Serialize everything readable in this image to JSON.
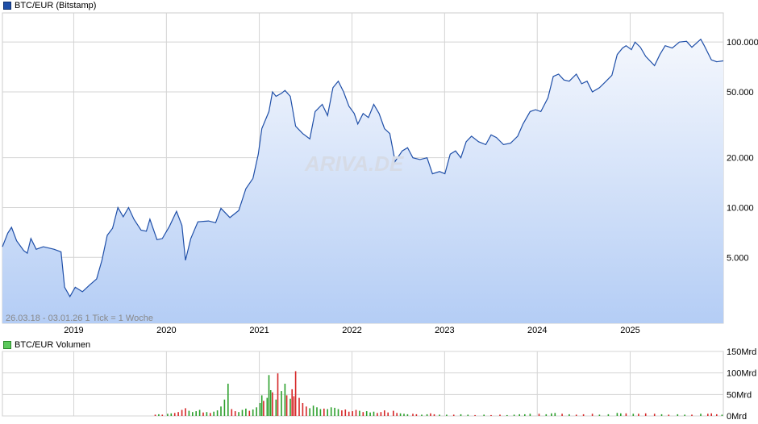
{
  "chart_data": [
    {
      "type": "area",
      "legend": "BTC/EUR (Bitstamp)",
      "series_color": "#1f4fa8",
      "y_scale": "log",
      "ylim": [
        2000,
        150000
      ],
      "y_ticks": [
        5000,
        10000,
        20000,
        50000,
        100000
      ],
      "y_tick_labels": [
        "5.000",
        "10.000",
        "20.000",
        "50.000",
        "100.000"
      ],
      "x_range": [
        "2018-03-26",
        "2026-01-03"
      ],
      "x_ticks": [
        "2019-01-01",
        "2020-01-01",
        "2021-01-01",
        "2022-01-01",
        "2023-01-01",
        "2024-01-01",
        "2025-01-01"
      ],
      "x_tick_labels": [
        "2019",
        "2020",
        "2021",
        "2022",
        "2023",
        "2024",
        "2025"
      ],
      "note": "26.03.18 - 03.01.26   1 Tick = 1 Woche",
      "watermark": "ARIVA.DE",
      "grid": true,
      "points": [
        [
          "2018-03-26",
          5800
        ],
        [
          "2018-04-16",
          7000
        ],
        [
          "2018-05-01",
          7600
        ],
        [
          "2018-05-21",
          6300
        ],
        [
          "2018-06-18",
          5500
        ],
        [
          "2018-07-02",
          5300
        ],
        [
          "2018-07-16",
          6500
        ],
        [
          "2018-08-06",
          5600
        ],
        [
          "2018-09-03",
          5800
        ],
        [
          "2018-10-15",
          5600
        ],
        [
          "2018-11-12",
          5400
        ],
        [
          "2018-11-26",
          3300
        ],
        [
          "2018-12-17",
          2900
        ],
        [
          "2019-01-07",
          3300
        ],
        [
          "2019-02-04",
          3100
        ],
        [
          "2019-03-04",
          3400
        ],
        [
          "2019-04-01",
          3700
        ],
        [
          "2019-04-22",
          4800
        ],
        [
          "2019-05-13",
          6800
        ],
        [
          "2019-06-03",
          7500
        ],
        [
          "2019-06-24",
          10000
        ],
        [
          "2019-07-15",
          8800
        ],
        [
          "2019-08-05",
          10000
        ],
        [
          "2019-08-26",
          8500
        ],
        [
          "2019-09-23",
          7300
        ],
        [
          "2019-10-14",
          7200
        ],
        [
          "2019-10-28",
          8500
        ],
        [
          "2019-11-25",
          6400
        ],
        [
          "2019-12-16",
          6500
        ],
        [
          "2020-01-13",
          7700
        ],
        [
          "2020-02-10",
          9500
        ],
        [
          "2020-03-02",
          7800
        ],
        [
          "2020-03-16",
          4800
        ],
        [
          "2020-04-06",
          6500
        ],
        [
          "2020-05-04",
          8200
        ],
        [
          "2020-06-15",
          8300
        ],
        [
          "2020-07-13",
          8100
        ],
        [
          "2020-08-03",
          9900
        ],
        [
          "2020-09-07",
          8700
        ],
        [
          "2020-10-12",
          9600
        ],
        [
          "2020-11-09",
          13000
        ],
        [
          "2020-12-07",
          15000
        ],
        [
          "2020-12-28",
          21000
        ],
        [
          "2021-01-11",
          30000
        ],
        [
          "2021-02-08",
          38000
        ],
        [
          "2021-02-22",
          50000
        ],
        [
          "2021-03-08",
          47000
        ],
        [
          "2021-03-29",
          49000
        ],
        [
          "2021-04-12",
          51000
        ],
        [
          "2021-05-03",
          47000
        ],
        [
          "2021-05-24",
          31000
        ],
        [
          "2021-06-21",
          28000
        ],
        [
          "2021-07-19",
          26000
        ],
        [
          "2021-08-09",
          38000
        ],
        [
          "2021-09-06",
          42000
        ],
        [
          "2021-09-27",
          36000
        ],
        [
          "2021-10-18",
          53000
        ],
        [
          "2021-11-08",
          58000
        ],
        [
          "2021-11-29",
          50000
        ],
        [
          "2021-12-20",
          41000
        ],
        [
          "2022-01-10",
          37000
        ],
        [
          "2022-01-24",
          32000
        ],
        [
          "2022-02-14",
          37000
        ],
        [
          "2022-03-07",
          35000
        ],
        [
          "2022-03-28",
          42000
        ],
        [
          "2022-04-18",
          37000
        ],
        [
          "2022-05-09",
          30000
        ],
        [
          "2022-05-30",
          28000
        ],
        [
          "2022-06-20",
          19000
        ],
        [
          "2022-07-18",
          22000
        ],
        [
          "2022-08-08",
          23000
        ],
        [
          "2022-08-29",
          20000
        ],
        [
          "2022-09-26",
          19500
        ],
        [
          "2022-10-24",
          20000
        ],
        [
          "2022-11-14",
          16000
        ],
        [
          "2022-12-12",
          16500
        ],
        [
          "2023-01-02",
          16000
        ],
        [
          "2023-01-23",
          21000
        ],
        [
          "2023-02-13",
          22000
        ],
        [
          "2023-03-06",
          20000
        ],
        [
          "2023-03-27",
          25000
        ],
        [
          "2023-04-17",
          27000
        ],
        [
          "2023-05-15",
          25000
        ],
        [
          "2023-06-12",
          24000
        ],
        [
          "2023-07-03",
          27500
        ],
        [
          "2023-07-24",
          26500
        ],
        [
          "2023-08-21",
          24000
        ],
        [
          "2023-09-18",
          24500
        ],
        [
          "2023-10-16",
          27000
        ],
        [
          "2023-11-06",
          32000
        ],
        [
          "2023-12-04",
          38000
        ],
        [
          "2023-12-25",
          39000
        ],
        [
          "2024-01-15",
          38000
        ],
        [
          "2024-02-12",
          46000
        ],
        [
          "2024-03-04",
          62000
        ],
        [
          "2024-03-25",
          64000
        ],
        [
          "2024-04-15",
          59000
        ],
        [
          "2024-05-06",
          58000
        ],
        [
          "2024-06-03",
          64000
        ],
        [
          "2024-06-24",
          56000
        ],
        [
          "2024-07-15",
          58000
        ],
        [
          "2024-08-05",
          50000
        ],
        [
          "2024-09-02",
          53000
        ],
        [
          "2024-09-23",
          57000
        ],
        [
          "2024-10-21",
          63000
        ],
        [
          "2024-11-11",
          84000
        ],
        [
          "2024-12-02",
          92000
        ],
        [
          "2024-12-16",
          95000
        ],
        [
          "2025-01-06",
          90000
        ],
        [
          "2025-01-20",
          100000
        ],
        [
          "2025-02-10",
          93000
        ],
        [
          "2025-03-03",
          82000
        ],
        [
          "2025-04-07",
          72000
        ],
        [
          "2025-04-28",
          84000
        ],
        [
          "2025-05-19",
          95000
        ],
        [
          "2025-06-16",
          92000
        ],
        [
          "2025-07-14",
          100000
        ],
        [
          "2025-08-11",
          101000
        ],
        [
          "2025-09-01",
          93000
        ],
        [
          "2025-10-06",
          104000
        ],
        [
          "2025-10-20",
          95000
        ],
        [
          "2025-11-17",
          78000
        ],
        [
          "2025-12-08",
          76000
        ],
        [
          "2026-01-03",
          77000
        ]
      ]
    },
    {
      "type": "bar",
      "legend": "BTC/EUR Volumen",
      "up_color": "#2ca02c",
      "down_color": "#d62728",
      "ylim": [
        0,
        150
      ],
      "y_ticks": [
        0,
        50,
        100,
        150
      ],
      "y_tick_labels": [
        "0Mrd",
        "50Mrd",
        "100Mrd",
        "150Mrd"
      ],
      "x_range": [
        "2018-03-26",
        "2026-01-03"
      ],
      "bars": [
        [
          "2019-11-18",
          3,
          "d"
        ],
        [
          "2019-12-02",
          4,
          "u"
        ],
        [
          "2019-12-16",
          3,
          "d"
        ],
        [
          "2020-01-06",
          5,
          "u"
        ],
        [
          "2020-01-20",
          6,
          "u"
        ],
        [
          "2020-02-03",
          7,
          "d"
        ],
        [
          "2020-02-17",
          9,
          "d"
        ],
        [
          "2020-03-02",
          14,
          "d"
        ],
        [
          "2020-03-16",
          18,
          "d"
        ],
        [
          "2020-03-30",
          12,
          "u"
        ],
        [
          "2020-04-13",
          9,
          "u"
        ],
        [
          "2020-04-27",
          11,
          "u"
        ],
        [
          "2020-05-11",
          14,
          "u"
        ],
        [
          "2020-05-25",
          8,
          "d"
        ],
        [
          "2020-06-08",
          9,
          "u"
        ],
        [
          "2020-06-22",
          7,
          "d"
        ],
        [
          "2020-07-06",
          10,
          "u"
        ],
        [
          "2020-07-20",
          13,
          "u"
        ],
        [
          "2020-08-03",
          22,
          "u"
        ],
        [
          "2020-08-17",
          38,
          "u"
        ],
        [
          "2020-08-31",
          75,
          "u"
        ],
        [
          "2020-09-14",
          16,
          "d"
        ],
        [
          "2020-09-28",
          11,
          "d"
        ],
        [
          "2020-10-12",
          9,
          "u"
        ],
        [
          "2020-10-26",
          14,
          "u"
        ],
        [
          "2020-11-09",
          17,
          "u"
        ],
        [
          "2020-11-23",
          12,
          "d"
        ],
        [
          "2020-12-07",
          15,
          "u"
        ],
        [
          "2020-12-21",
          20,
          "u"
        ],
        [
          "2021-01-04",
          30,
          "u"
        ],
        [
          "2021-01-11",
          48,
          "u"
        ],
        [
          "2021-01-18",
          35,
          "d"
        ],
        [
          "2021-02-01",
          42,
          "u"
        ],
        [
          "2021-02-08",
          95,
          "u"
        ],
        [
          "2021-02-15",
          60,
          "u"
        ],
        [
          "2021-02-22",
          55,
          "d"
        ],
        [
          "2021-03-08",
          38,
          "u"
        ],
        [
          "2021-03-15",
          99,
          "d"
        ],
        [
          "2021-03-29",
          58,
          "u"
        ],
        [
          "2021-04-12",
          75,
          "u"
        ],
        [
          "2021-04-19",
          48,
          "d"
        ],
        [
          "2021-05-03",
          40,
          "u"
        ],
        [
          "2021-05-10",
          62,
          "d"
        ],
        [
          "2021-05-17",
          46,
          "d"
        ],
        [
          "2021-05-24",
          104,
          "d"
        ],
        [
          "2021-06-07",
          42,
          "d"
        ],
        [
          "2021-06-21",
          30,
          "d"
        ],
        [
          "2021-07-05",
          22,
          "d"
        ],
        [
          "2021-07-19",
          18,
          "u"
        ],
        [
          "2021-08-02",
          24,
          "u"
        ],
        [
          "2021-08-16",
          20,
          "u"
        ],
        [
          "2021-08-30",
          16,
          "u"
        ],
        [
          "2021-09-13",
          17,
          "d"
        ],
        [
          "2021-09-27",
          16,
          "u"
        ],
        [
          "2021-10-11",
          20,
          "u"
        ],
        [
          "2021-10-25",
          19,
          "u"
        ],
        [
          "2021-11-08",
          16,
          "u"
        ],
        [
          "2021-11-22",
          13,
          "d"
        ],
        [
          "2021-12-06",
          15,
          "d"
        ],
        [
          "2021-12-20",
          10,
          "d"
        ],
        [
          "2022-01-03",
          11,
          "d"
        ],
        [
          "2022-01-17",
          14,
          "d"
        ],
        [
          "2022-01-31",
          12,
          "u"
        ],
        [
          "2022-02-14",
          9,
          "d"
        ],
        [
          "2022-02-28",
          11,
          "u"
        ],
        [
          "2022-03-14",
          8,
          "u"
        ],
        [
          "2022-03-28",
          10,
          "u"
        ],
        [
          "2022-04-11",
          7,
          "d"
        ],
        [
          "2022-04-25",
          9,
          "d"
        ],
        [
          "2022-05-09",
          13,
          "d"
        ],
        [
          "2022-05-23",
          8,
          "d"
        ],
        [
          "2022-06-13",
          12,
          "d"
        ],
        [
          "2022-06-27",
          7,
          "d"
        ],
        [
          "2022-07-11",
          6,
          "u"
        ],
        [
          "2022-07-25",
          5,
          "u"
        ],
        [
          "2022-08-08",
          4,
          "u"
        ],
        [
          "2022-08-29",
          5,
          "d"
        ],
        [
          "2022-09-12",
          4,
          "d"
        ],
        [
          "2022-10-03",
          3,
          "u"
        ],
        [
          "2022-10-24",
          4,
          "u"
        ],
        [
          "2022-11-07",
          6,
          "d"
        ],
        [
          "2022-11-21",
          4,
          "d"
        ],
        [
          "2022-12-12",
          3,
          "u"
        ],
        [
          "2023-01-09",
          3,
          "u"
        ],
        [
          "2023-02-06",
          3,
          "d"
        ],
        [
          "2023-03-06",
          4,
          "u"
        ],
        [
          "2023-04-03",
          3,
          "u"
        ],
        [
          "2023-05-01",
          2,
          "d"
        ],
        [
          "2023-06-05",
          3,
          "u"
        ],
        [
          "2023-07-03",
          2,
          "d"
        ],
        [
          "2023-08-07",
          3,
          "d"
        ],
        [
          "2023-09-04",
          2,
          "u"
        ],
        [
          "2023-10-02",
          3,
          "u"
        ],
        [
          "2023-10-23",
          4,
          "u"
        ],
        [
          "2023-11-13",
          4,
          "u"
        ],
        [
          "2023-12-04",
          5,
          "u"
        ],
        [
          "2024-01-08",
          5,
          "d"
        ],
        [
          "2024-02-05",
          4,
          "u"
        ],
        [
          "2024-02-26",
          6,
          "u"
        ],
        [
          "2024-03-11",
          7,
          "u"
        ],
        [
          "2024-04-08",
          5,
          "d"
        ],
        [
          "2024-05-06",
          4,
          "u"
        ],
        [
          "2024-06-03",
          3,
          "d"
        ],
        [
          "2024-07-01",
          4,
          "d"
        ],
        [
          "2024-08-05",
          5,
          "d"
        ],
        [
          "2024-09-02",
          3,
          "u"
        ],
        [
          "2024-10-07",
          4,
          "u"
        ],
        [
          "2024-11-11",
          7,
          "u"
        ],
        [
          "2024-11-25",
          6,
          "u"
        ],
        [
          "2024-12-16",
          6,
          "d"
        ],
        [
          "2025-01-13",
          5,
          "u"
        ],
        [
          "2025-02-03",
          5,
          "d"
        ],
        [
          "2025-03-03",
          6,
          "d"
        ],
        [
          "2025-04-07",
          5,
          "d"
        ],
        [
          "2025-05-05",
          4,
          "u"
        ],
        [
          "2025-06-02",
          3,
          "d"
        ],
        [
          "2025-07-07",
          4,
          "u"
        ],
        [
          "2025-08-04",
          3,
          "u"
        ],
        [
          "2025-09-01",
          3,
          "d"
        ],
        [
          "2025-10-06",
          5,
          "u"
        ],
        [
          "2025-11-03",
          5,
          "d"
        ],
        [
          "2025-11-17",
          6,
          "d"
        ],
        [
          "2025-12-08",
          4,
          "d"
        ],
        [
          "2025-12-29",
          3,
          "u"
        ]
      ]
    }
  ]
}
